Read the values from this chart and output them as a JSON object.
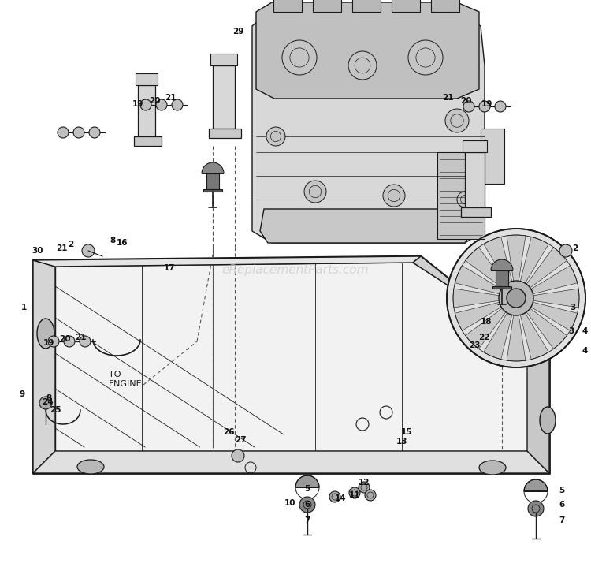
{
  "bg_color": "#ffffff",
  "line_color": "#1a1a1a",
  "watermark": "eReplacementParts.com",
  "watermark_color": "#c8c8c8",
  "figsize": [
    7.5,
    7.33
  ],
  "dpi": 100
}
